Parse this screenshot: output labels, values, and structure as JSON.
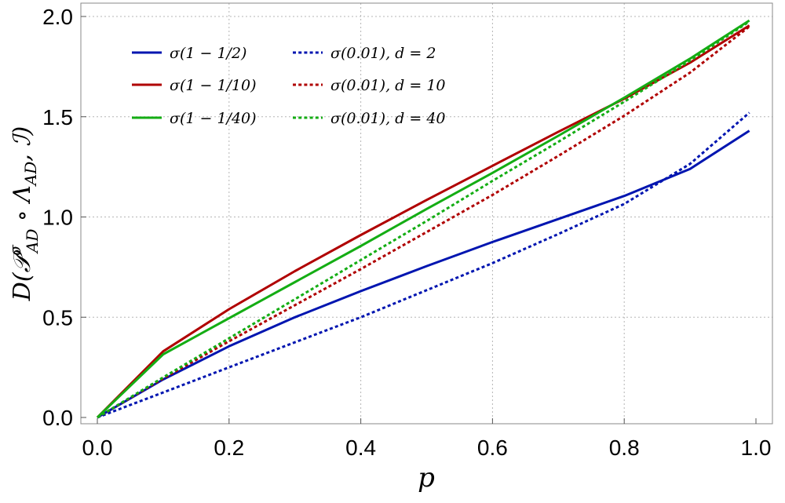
{
  "chart_data": {
    "type": "line",
    "title": "",
    "xlabel": "p",
    "ylabel": "D(P^σ_AD ∘ Λ_AD, I)",
    "xlim": [
      0.0,
      1.0
    ],
    "ylim": [
      0.0,
      2.05
    ],
    "xticks": [
      0.0,
      0.2,
      0.4,
      0.6,
      0.8,
      1.0
    ],
    "xtick_labels": [
      "0.0",
      "0.2",
      "0.4",
      "0.6",
      "0.8",
      "1.0"
    ],
    "yticks": [
      0.0,
      0.5,
      1.0,
      1.5,
      2.0
    ],
    "ytick_labels": [
      "0.0",
      "0.5",
      "1.0",
      "1.5",
      "2.0"
    ],
    "grid": true,
    "legend_position": "top-left",
    "series": [
      {
        "name": "σ(1 − 1/2)",
        "color": "#0015b0",
        "dash": "solid",
        "x": [
          0.0,
          0.1,
          0.2,
          0.3,
          0.4,
          0.5,
          0.6,
          0.7,
          0.8,
          0.9,
          0.99
        ],
        "y": [
          0.0,
          0.19,
          0.355,
          0.5,
          0.63,
          0.755,
          0.875,
          0.99,
          1.105,
          1.24,
          1.43
        ]
      },
      {
        "name": "σ(0.01), d = 2",
        "color": "#0015b0",
        "dash": "dotted",
        "x": [
          0.0,
          0.1,
          0.2,
          0.3,
          0.4,
          0.5,
          0.6,
          0.7,
          0.8,
          0.9,
          0.99
        ],
        "y": [
          0.0,
          0.125,
          0.25,
          0.375,
          0.5,
          0.635,
          0.77,
          0.915,
          1.065,
          1.265,
          1.52
        ]
      },
      {
        "name": "σ(1 − 1/10)",
        "color": "#b00000",
        "dash": "solid",
        "x": [
          0.0,
          0.1,
          0.2,
          0.3,
          0.4,
          0.5,
          0.6,
          0.7,
          0.8,
          0.9,
          0.99
        ],
        "y": [
          0.0,
          0.33,
          0.54,
          0.73,
          0.91,
          1.085,
          1.255,
          1.425,
          1.59,
          1.77,
          1.955
        ]
      },
      {
        "name": "σ(0.01), d = 10",
        "color": "#b00000",
        "dash": "dotted",
        "x": [
          0.0,
          0.1,
          0.2,
          0.3,
          0.4,
          0.5,
          0.6,
          0.7,
          0.8,
          0.9,
          0.99
        ],
        "y": [
          0.0,
          0.195,
          0.38,
          0.56,
          0.74,
          0.925,
          1.11,
          1.305,
          1.505,
          1.72,
          1.95
        ]
      },
      {
        "name": "σ(1 − 1/40)",
        "color": "#14ad14",
        "dash": "solid",
        "x": [
          0.0,
          0.1,
          0.2,
          0.3,
          0.4,
          0.5,
          0.6,
          0.7,
          0.8,
          0.9,
          0.99
        ],
        "y": [
          0.0,
          0.315,
          0.495,
          0.675,
          0.855,
          1.04,
          1.22,
          1.405,
          1.595,
          1.79,
          1.98
        ]
      },
      {
        "name": "σ(0.01), d = 40",
        "color": "#14ad14",
        "dash": "dotted",
        "x": [
          0.0,
          0.1,
          0.2,
          0.3,
          0.4,
          0.5,
          0.6,
          0.7,
          0.8,
          0.9,
          0.99
        ],
        "y": [
          0.0,
          0.2,
          0.395,
          0.59,
          0.785,
          0.98,
          1.18,
          1.375,
          1.575,
          1.78,
          1.975
        ]
      }
    ]
  }
}
